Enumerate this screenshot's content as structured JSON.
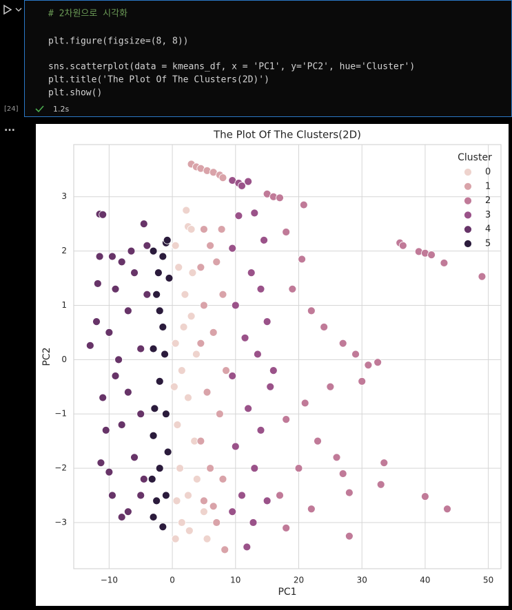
{
  "cell": {
    "prompt": "[24]",
    "time": "1.2s",
    "more": "...",
    "code": [
      "# 2차원으로 시각화",
      "plt.figure(figsize=(8, 8))",
      "sns.scatterplot(data = kmeans_df, x = 'PC1', y='PC2', hue='Cluster')",
      "plt.title('The Plot Of The Clusters(2D)')",
      "plt.show()"
    ]
  },
  "chart_data": {
    "type": "scatter",
    "title": "The Plot Of The Clusters(2D)",
    "x_label": "PC1",
    "y_label": "PC2",
    "legend_title": "Cluster",
    "legend": "upper right",
    "grid": true,
    "xlim": [
      -15.6,
      52
    ],
    "ylim": [
      -3.85,
      3.96
    ],
    "xticks": [
      {
        "value": -10,
        "label": "−10"
      },
      0,
      10,
      20,
      30,
      40,
      50
    ],
    "yticks": [
      {
        "value": -3,
        "label": "−3"
      },
      {
        "value": -2,
        "label": "−2"
      },
      {
        "value": -1,
        "label": "−1"
      },
      0,
      1,
      2,
      3
    ],
    "series": [
      {
        "name": "0",
        "color": "#eed3cd",
        "x": [
          2.2,
          2.5,
          3,
          0.5,
          1,
          2,
          3,
          0.5,
          1.5,
          2.5,
          0.8,
          3.5,
          1.2,
          2.5,
          0.5,
          1.5,
          2.7,
          3.8,
          0.3,
          3.2,
          1.8,
          0.7,
          3.9,
          5.5,
          5
        ],
        "y": [
          2.75,
          2.45,
          2.4,
          2.1,
          1.7,
          1.2,
          0.8,
          0.3,
          -0.2,
          -0.7,
          -1.2,
          -1.5,
          -2,
          -2.5,
          -3.3,
          -3,
          -3.15,
          0.1,
          -0.5,
          1.6,
          0.6,
          -2.6,
          -2.2,
          -3.3,
          -2.8
        ]
      },
      {
        "name": "1",
        "color": "#d9a3a9",
        "x": [
          3,
          3.8,
          4.5,
          5.5,
          6.5,
          7.5,
          8,
          5,
          6,
          4.5,
          7,
          5,
          8,
          4.5,
          6.5,
          8.5,
          5.5,
          7.5,
          4.5,
          6,
          8,
          5,
          7,
          8.3,
          6.5,
          7.8
        ],
        "y": [
          3.6,
          3.55,
          3.52,
          3.48,
          3.45,
          3.4,
          3.35,
          2.4,
          2.1,
          1.7,
          1.8,
          1,
          1.2,
          0.3,
          0.5,
          -0.2,
          -0.6,
          -1,
          -1.5,
          -2,
          -2.2,
          -2.6,
          -3,
          -3.5,
          -2.7,
          2.4
        ]
      },
      {
        "name": "2",
        "color": "#c07a98",
        "x": [
          15,
          16,
          17,
          18,
          20.8,
          20.5,
          36,
          36.5,
          39,
          40,
          41,
          43,
          49,
          19,
          22,
          24,
          27,
          29,
          31,
          32.5,
          30,
          25,
          21,
          18,
          23,
          26,
          20,
          27,
          33.5,
          33,
          28,
          40,
          43.5,
          28,
          22,
          18,
          17
        ],
        "y": [
          3.05,
          3,
          2.98,
          2.35,
          2.85,
          1.85,
          2.15,
          2.1,
          1.99,
          1.96,
          1.93,
          1.78,
          1.53,
          1.3,
          0.9,
          0.6,
          0.3,
          0.1,
          -0.1,
          -0.05,
          -0.4,
          -0.5,
          -0.8,
          -1.1,
          -1.5,
          -1.8,
          -2,
          -2.1,
          -1.9,
          -2.3,
          -2.45,
          -2.52,
          -2.75,
          -3.25,
          -2.75,
          -3.1,
          -2.5
        ]
      },
      {
        "name": "3",
        "color": "#9a5289",
        "x": [
          9.5,
          10.5,
          11,
          12,
          13,
          10.5,
          9.5,
          12.5,
          14,
          10,
          15,
          11.5,
          13.5,
          9.5,
          15.5,
          12,
          14,
          10,
          13,
          11,
          15,
          9.5,
          12.8,
          11.8,
          16,
          14.5
        ],
        "y": [
          3.3,
          3.25,
          3.2,
          3.28,
          2.7,
          2.65,
          2.05,
          1.6,
          1.3,
          1,
          0.7,
          0.4,
          0.1,
          -0.3,
          -0.5,
          -0.9,
          -1.3,
          -1.6,
          -2,
          -2.5,
          -2.6,
          -2.8,
          -3,
          -3.45,
          -0.2,
          2.2
        ]
      },
      {
        "name": "4",
        "color": "#673468",
        "x": [
          -11.5,
          -11,
          -11.5,
          -13,
          -11,
          -11.3,
          -10,
          -9.5,
          -8,
          -7,
          -5,
          -4.5,
          -4,
          -8,
          -9,
          -10,
          -9,
          -8,
          -7,
          -6,
          -6,
          -5,
          -7,
          -5,
          -4,
          -10.5,
          -8.5,
          -6.5,
          -4.5,
          -9.5,
          -11.8,
          -12
        ],
        "y": [
          2.68,
          2.67,
          1.9,
          0.26,
          -0.7,
          -1.9,
          -2.07,
          -2.5,
          -2.9,
          -2.8,
          -2.5,
          2.5,
          2.1,
          1.8,
          1.3,
          0.5,
          -0.3,
          -1.2,
          0.9,
          -1.8,
          1.6,
          0.2,
          -0.6,
          -1,
          1.2,
          -1.3,
          0,
          2,
          -2.2,
          1.9,
          1.4,
          0.7
        ]
      },
      {
        "name": "5",
        "color": "#2b1b3c",
        "x": [
          -1,
          -1.5,
          -3,
          -2.5,
          -1.5,
          -3,
          -2,
          -1,
          -3,
          -2,
          -1,
          -1.5,
          -3,
          -2.5,
          -0.5,
          -2.8,
          -1.2,
          -0.7,
          -2.2,
          -3.2,
          -0.8,
          -2
        ],
        "y": [
          2.15,
          1.9,
          2,
          1.2,
          0.6,
          0.2,
          -0.4,
          -1,
          -1.4,
          -2,
          -2.5,
          -3.08,
          -2.9,
          -2.6,
          1.5,
          -0.9,
          0.1,
          -1.7,
          1.6,
          -2.2,
          2.2,
          0.9
        ]
      }
    ]
  }
}
